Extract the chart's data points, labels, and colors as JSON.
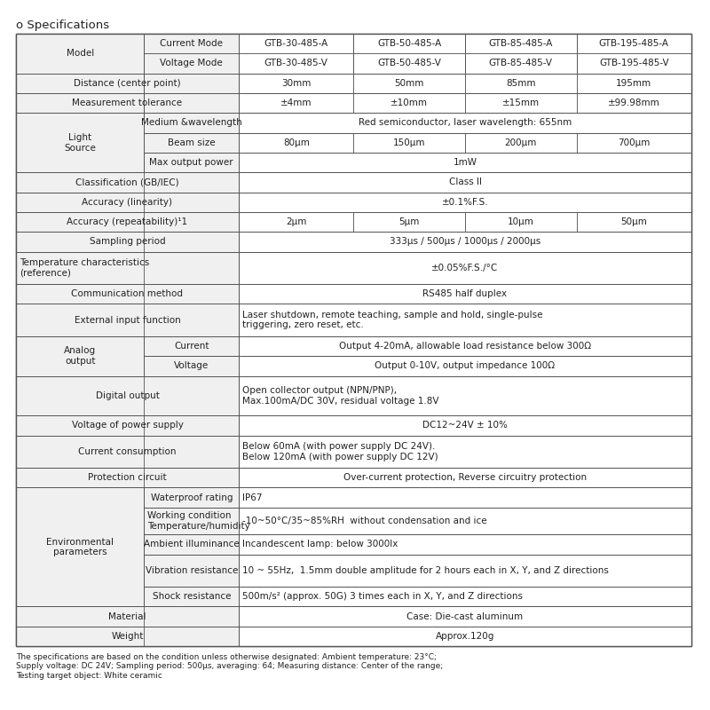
{
  "title": "o Specifications",
  "bg_color": "#ffffff",
  "border_color": "#555555",
  "header_bg": "#e8e8e8",
  "text_color": "#222222",
  "footnote": "The specifications are based on the condition unless otherwise designated: Ambient temperature: 23°C;\nSupply voltage: DC 24V; Sampling period: 500μs, averaging: 64; Measuring distance: Center of the range;\nTesting target object: White ceramic",
  "rows": [
    {
      "type": "double_header",
      "col0a": "Model",
      "col0b": "",
      "col1a": "Current Mode",
      "col1b": "Voltage Mode",
      "col2a": "GTB-30-485-A",
      "col2b": "GTB-30-485-V",
      "col3a": "GTB-50-485-A",
      "col3b": "GTB-50-485-V",
      "col4a": "GTB-85-485-A",
      "col4b": "GTB-85-485-V",
      "col5a": "GTB-195-485-A",
      "col5b": "GTB-195-485-V"
    },
    {
      "type": "simple",
      "label": "Distance (center point)",
      "span_label": 1,
      "values": [
        "30mm",
        "50mm",
        "85mm",
        "195mm"
      ]
    },
    {
      "type": "simple",
      "label": "Measurement tolerance",
      "span_label": 1,
      "values": [
        "±4mm",
        "±10mm",
        "±15mm",
        "±99.98mm"
      ]
    },
    {
      "type": "triple_sub",
      "label": "Light\nSource",
      "subs": [
        "Medium &wavelength",
        "Beam size",
        "Max output power"
      ],
      "values": [
        [
          "Red semiconductor, laser wavelength: 655nm"
        ],
        [
          "80μm",
          "150μm",
          "200μm",
          "700μm"
        ],
        [
          "1mW"
        ]
      ]
    },
    {
      "type": "simple",
      "label": "Classification (GB/IEC)",
      "span_label": 1,
      "values": [
        "Class II"
      ]
    },
    {
      "type": "simple",
      "label": "Accuracy (linearity)",
      "span_label": 1,
      "values": [
        "±0.1%F.S."
      ]
    },
    {
      "type": "simple",
      "label": "Accuracy (repeatability)¹1",
      "span_label": 1,
      "values": [
        "2μm",
        "5μm",
        "10μm",
        "50μm"
      ]
    },
    {
      "type": "simple",
      "label": "Sampling period",
      "span_label": 1,
      "values": [
        "333μs / 500μs / 1000μs / 2000μs"
      ]
    },
    {
      "type": "simple_2line",
      "label": "Temperature characteristics\n(reference)",
      "span_label": 1,
      "values": [
        "±0.05%F.S./°C"
      ]
    },
    {
      "type": "simple",
      "label": "Communication method",
      "span_label": 1,
      "values": [
        "RS485 half duplex"
      ]
    },
    {
      "type": "simple_2line",
      "label": "External input function",
      "span_label": 1,
      "values": [
        "Laser shutdown, remote teaching, sample and hold, single-pulse\ntriggering, zero reset, etc."
      ]
    },
    {
      "type": "double_sub",
      "label": "Analog\noutput",
      "subs": [
        "Current",
        "Voltage"
      ],
      "values": [
        "Output 4-20mA, allowable load resistance below 300Ω",
        "Output 0-10V, output impedance 100Ω"
      ]
    },
    {
      "type": "simple_2line",
      "label": "Digital output",
      "span_label": 1,
      "values": [
        "Open collector output (NPN/PNP),\nMax.100mA/DC 30V, residual voltage 1.8V"
      ]
    },
    {
      "type": "simple",
      "label": "Voltage of power supply",
      "span_label": 1,
      "values": [
        "DC12~24V ± 10%"
      ]
    },
    {
      "type": "simple_2line",
      "label": "Current consumption",
      "span_label": 1,
      "values": [
        "Below 60mA (with power supply DC 24V).\nBelow 120mA (with power supply DC 12V)"
      ]
    },
    {
      "type": "simple",
      "label": "Protection circuit",
      "span_label": 1,
      "values": [
        "Over-current protection, Reverse circuitry protection"
      ]
    },
    {
      "type": "env",
      "label": "Environmental\nparameters",
      "subs": [
        "Waterproof rating",
        "Working condition\nTemperature/humidity",
        "Ambient illuminance",
        "Vibration resistance",
        "Shock resistance"
      ],
      "values": [
        "IP67",
        "-10~50°C/35~85%RH  without condensation and ice",
        "Incandescent lamp: below 3000lx",
        "10 ~ 55Hz,  1.5mm double amplitude for 2 hours each in X, Y, and Z directions",
        "500m/s² (approx. 50G) 3 times each in X, Y, and Z directions"
      ]
    },
    {
      "type": "simple",
      "label": "Material",
      "span_label": 1,
      "values": [
        "Case: Die-cast aluminum"
      ]
    },
    {
      "type": "simple",
      "label": "Weight",
      "span_label": 1,
      "values": [
        "Approx.120g"
      ]
    }
  ]
}
